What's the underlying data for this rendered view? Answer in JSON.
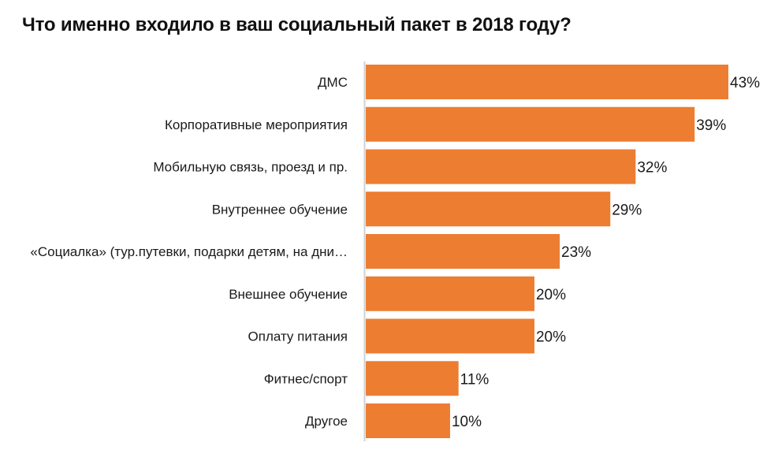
{
  "chart_data": {
    "type": "bar",
    "orientation": "horizontal",
    "title": "Что именно входило в ваш социальный пакет в 2018 году?",
    "categories": [
      "ДМС",
      "Корпоративные мероприятия",
      "Мобильную связь, проезд и пр.",
      "Внутреннее обучение",
      "«Социалка» (тур.путевки, подарки детям, на дни…",
      "Внешнее обучение",
      "Оплату питания",
      "Фитнес/спорт",
      "Другое"
    ],
    "values": [
      43,
      39,
      32,
      29,
      23,
      20,
      20,
      11,
      10
    ],
    "value_labels": [
      "43%",
      "39%",
      "32%",
      "29%",
      "23%",
      "20%",
      "20%",
      "11%",
      "10%"
    ],
    "value_suffix": "%",
    "xlim": [
      0,
      43
    ],
    "grid": false,
    "legend": "none",
    "bar_color": "#ED7D31",
    "axis_color": "#D0D0D0",
    "text_color": "#1A1A1A"
  }
}
